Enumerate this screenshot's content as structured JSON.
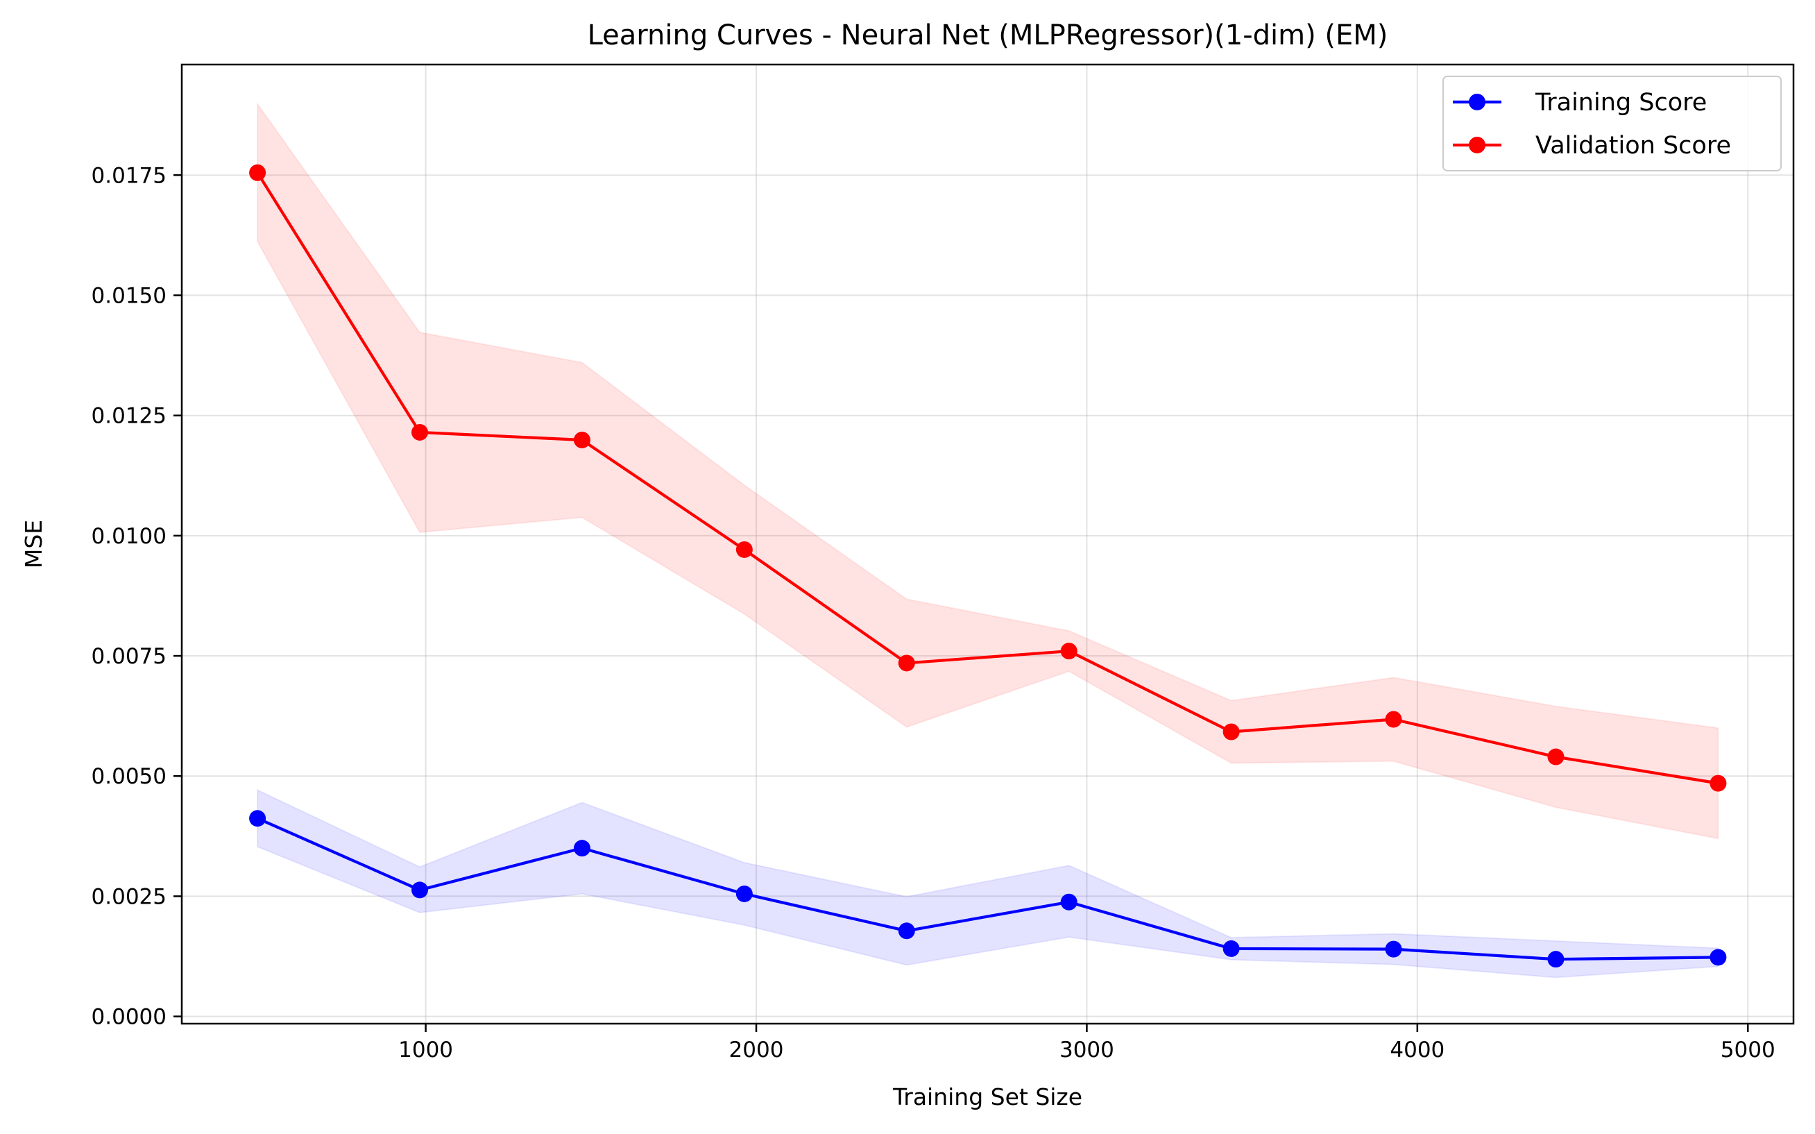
{
  "chart_data": {
    "type": "line",
    "title": "Learning Curves - Neural Net (MLPRegressor)(1-dim) (EM)",
    "xlabel": "Training Set Size",
    "ylabel": "MSE",
    "xlim": [
      262,
      5138
    ],
    "ylim": [
      -0.00015,
      0.0198
    ],
    "xticks": [
      1000,
      2000,
      3000,
      4000,
      5000
    ],
    "yticks": [
      0.0,
      0.0025,
      0.005,
      0.0075,
      0.01,
      0.0125,
      0.015,
      0.0175
    ],
    "ytick_labels": [
      "0.0000",
      "0.0025",
      "0.0050",
      "0.0075",
      "0.0100",
      "0.0125",
      "0.0150",
      "0.0175"
    ],
    "grid": true,
    "legend_position": "top-right",
    "x": [
      491,
      982,
      1473,
      1964,
      2455,
      2946,
      3437,
      3928,
      4419,
      4910
    ],
    "series": [
      {
        "name": "Training Score",
        "color": "#0000ff",
        "values": [
          0.00412,
          0.00263,
          0.0035,
          0.00255,
          0.00178,
          0.00238,
          0.00141,
          0.0014,
          0.00119,
          0.00123
        ],
        "lower": [
          0.00353,
          0.00216,
          0.00255,
          0.0019,
          0.00107,
          0.00165,
          0.00118,
          0.00108,
          0.00081,
          0.00104
        ],
        "upper": [
          0.00471,
          0.00311,
          0.00445,
          0.0032,
          0.00249,
          0.00314,
          0.00164,
          0.00172,
          0.00157,
          0.00142
        ]
      },
      {
        "name": "Validation Score",
        "color": "#ff0000",
        "values": [
          0.01755,
          0.01215,
          0.01199,
          0.00971,
          0.00735,
          0.0076,
          0.00592,
          0.00618,
          0.0054,
          0.00485
        ],
        "lower": [
          0.01612,
          0.01007,
          0.01038,
          0.00837,
          0.00602,
          0.00718,
          0.00527,
          0.00531,
          0.00435,
          0.0037
        ],
        "upper": [
          0.01898,
          0.01423,
          0.0136,
          0.01105,
          0.00868,
          0.00802,
          0.00657,
          0.00705,
          0.00645,
          0.006
        ]
      }
    ]
  }
}
